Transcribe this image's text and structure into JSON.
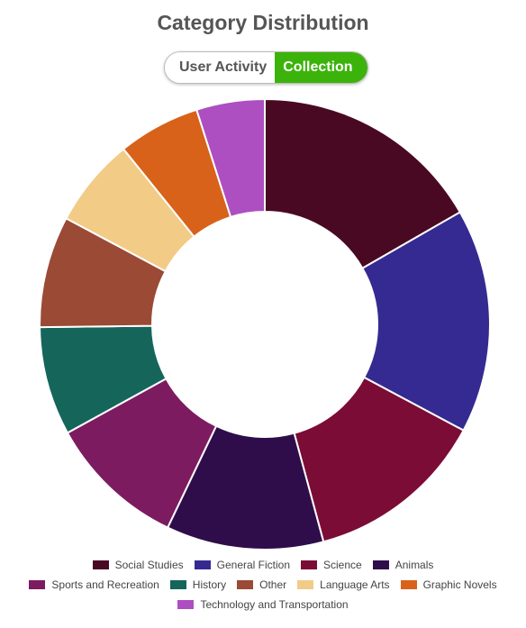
{
  "chart_data": {
    "type": "donut",
    "title": "Category Distribution",
    "toggle_options": [
      "User Activity",
      "Collection"
    ],
    "categories": [
      "Social Studies",
      "General Fiction",
      "Science",
      "Animals",
      "Sports and Recreation",
      "History",
      "Other",
      "Language Arts",
      "Graphic Novels",
      "Technology and Transportation"
    ],
    "values": [
      16.7,
      16.1,
      13.0,
      11.3,
      9.9,
      7.8,
      8.0,
      6.4,
      5.9,
      4.9
    ],
    "colors": [
      "#4a0922",
      "#352a91",
      "#7b0c36",
      "#2f0d4a",
      "#7d1b61",
      "#15655b",
      "#9a4a35",
      "#f2cb86",
      "#d8621a",
      "#ad4fc0"
    ],
    "legend": "bottom"
  }
}
